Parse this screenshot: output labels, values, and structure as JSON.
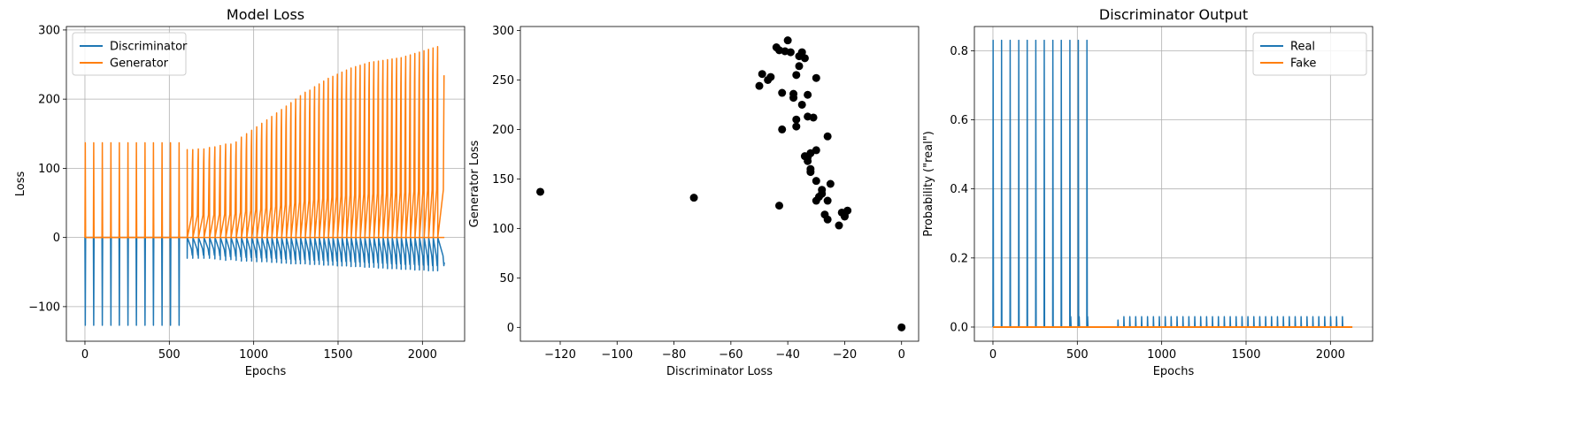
{
  "chart_data": [
    {
      "type": "line",
      "title": "Model Loss",
      "xlabel": "Epochs",
      "ylabel": "Loss",
      "xlim": [
        -110,
        2250
      ],
      "ylim": [
        -150,
        305
      ],
      "xticks": [
        0,
        500,
        1000,
        1500,
        2000
      ],
      "yticks": [
        -100,
        0,
        100,
        200,
        300
      ],
      "grid": true,
      "legend": "top-left",
      "n_epochs": 2130,
      "cycle_starts": [
        0,
        50,
        101,
        152,
        202,
        253,
        303,
        354,
        404,
        455,
        505,
        556,
        606,
        639,
        672,
        705,
        738,
        770,
        802,
        834,
        865,
        896,
        927,
        958,
        988,
        1018,
        1048,
        1078,
        1107,
        1136,
        1165,
        1193,
        1221,
        1249,
        1277,
        1305,
        1333,
        1361,
        1388,
        1415,
        1442,
        1469,
        1496,
        1523,
        1550,
        1577,
        1604,
        1631,
        1658,
        1685,
        1712,
        1739,
        1766,
        1793,
        1820,
        1847,
        1874,
        1901,
        1928,
        1955,
        1982,
        2009,
        2036,
        2063,
        2090
      ],
      "series": [
        {
          "name": "Discriminator",
          "color": "#1f77b4",
          "spike_values": [
            -127,
            -127,
            -127,
            -127,
            -127,
            -127,
            -127,
            -127,
            -127,
            -127,
            -127,
            -127,
            -30,
            -30,
            -30,
            -30,
            -30,
            -31,
            -32,
            -33,
            -32,
            -33,
            -34,
            -34,
            -34,
            -35,
            -35,
            -35,
            -36,
            -36,
            -37,
            -37,
            -38,
            -38,
            -38,
            -38,
            -39,
            -39,
            -39,
            -40,
            -40,
            -40,
            -41,
            -41,
            -41,
            -42,
            -42,
            -42,
            -43,
            -43,
            -43,
            -44,
            -44,
            -45,
            -45,
            -45,
            -46,
            -46,
            -46,
            -47,
            -47,
            -47,
            -48,
            -48,
            -48
          ]
        },
        {
          "name": "Generator",
          "color": "#ff7f0e",
          "spike_values": [
            137,
            137,
            137,
            137,
            137,
            137,
            137,
            137,
            137,
            137,
            137,
            137,
            127,
            127,
            128,
            128,
            130,
            131,
            133,
            135,
            135,
            138,
            145,
            150,
            155,
            160,
            165,
            170,
            175,
            180,
            185,
            190,
            195,
            200,
            205,
            210,
            213,
            218,
            222,
            226,
            230,
            233,
            236,
            239,
            242,
            245,
            247,
            249,
            251,
            253,
            254,
            255,
            256,
            257,
            258,
            259,
            260,
            262,
            264,
            266,
            268,
            270,
            272,
            274,
            276
          ]
        }
      ]
    },
    {
      "type": "scatter",
      "title": "",
      "xlabel": "Discriminator Loss",
      "ylabel": "Generator Loss",
      "xlim": [
        -134,
        6
      ],
      "ylim": [
        -14,
        304
      ],
      "xticks": [
        -120,
        -100,
        -80,
        -60,
        -40,
        -20,
        0
      ],
      "yticks": [
        0,
        50,
        100,
        150,
        200,
        250,
        300
      ],
      "grid": false,
      "color": "#000000",
      "points": [
        [
          -127,
          137
        ],
        [
          -73,
          131
        ],
        [
          -43,
          123
        ],
        [
          0,
          0
        ],
        [
          -50,
          244
        ],
        [
          -49,
          256
        ],
        [
          -47,
          250
        ],
        [
          -46,
          253
        ],
        [
          -44,
          283
        ],
        [
          -43,
          280
        ],
        [
          -42,
          237
        ],
        [
          -42,
          200
        ],
        [
          -41,
          279
        ],
        [
          -40,
          290
        ],
        [
          -39,
          278
        ],
        [
          -38,
          236
        ],
        [
          -38,
          232
        ],
        [
          -37,
          255
        ],
        [
          -37,
          210
        ],
        [
          -37,
          203
        ],
        [
          -36,
          264
        ],
        [
          -36,
          274
        ],
        [
          -35,
          225
        ],
        [
          -35,
          278
        ],
        [
          -34,
          173
        ],
        [
          -34,
          272
        ],
        [
          -33,
          235
        ],
        [
          -33,
          213
        ],
        [
          -33,
          172
        ],
        [
          -33,
          168
        ],
        [
          -32,
          176
        ],
        [
          -32,
          160
        ],
        [
          -32,
          157
        ],
        [
          -31,
          212
        ],
        [
          -30,
          252
        ],
        [
          -30,
          179
        ],
        [
          -30,
          148
        ],
        [
          -30,
          128
        ],
        [
          -29,
          132
        ],
        [
          -28,
          135
        ],
        [
          -28,
          139
        ],
        [
          -27,
          114
        ],
        [
          -26,
          128
        ],
        [
          -26,
          109
        ],
        [
          -26,
          193
        ],
        [
          -25,
          145
        ],
        [
          -22,
          103
        ],
        [
          -21,
          116
        ],
        [
          -20,
          112
        ],
        [
          -20,
          113
        ],
        [
          -19,
          118
        ]
      ]
    },
    {
      "type": "line",
      "title": "Discriminator Output",
      "xlabel": "Epochs",
      "ylabel": "Probability (\"real\")",
      "xlim": [
        -110,
        2250
      ],
      "ylim": [
        -0.041,
        0.87
      ],
      "xticks": [
        0,
        500,
        1000,
        1500,
        2000
      ],
      "yticks": [
        0.0,
        0.2,
        0.4,
        0.6,
        0.8
      ],
      "ytick_labels": [
        "0.0",
        "0.2",
        "0.4",
        "0.6",
        "0.8"
      ],
      "grid": true,
      "legend": "top-right",
      "n_epochs": 2130,
      "cycle_starts": [
        0,
        50,
        101,
        152,
        202,
        253,
        303,
        354,
        404,
        455,
        505,
        556,
        740,
        775,
        810,
        845,
        880,
        915,
        950,
        985,
        1020,
        1055,
        1090,
        1125,
        1160,
        1195,
        1230,
        1265,
        1300,
        1335,
        1370,
        1405,
        1440,
        1475,
        1510,
        1545,
        1580,
        1615,
        1650,
        1685,
        1720,
        1755,
        1790,
        1825,
        1860,
        1895,
        1930,
        1965,
        2000,
        2035,
        2070
      ],
      "series": [
        {
          "name": "Real",
          "color": "#1f77b4",
          "spike_values": [
            0.83,
            0.83,
            0.83,
            0.83,
            0.83,
            0.83,
            0.83,
            0.83,
            0.83,
            0.83,
            0.83,
            0.83,
            0.02,
            0.03,
            0.03,
            0.03,
            0.03,
            0.03,
            0.03,
            0.03,
            0.03,
            0.03,
            0.03,
            0.03,
            0.03,
            0.03,
            0.03,
            0.03,
            0.03,
            0.03,
            0.03,
            0.03,
            0.03,
            0.03,
            0.03,
            0.03,
            0.03,
            0.03,
            0.03,
            0.03,
            0.03,
            0.03,
            0.03,
            0.03,
            0.03,
            0.03,
            0.03,
            0.03,
            0.03,
            0.03,
            0.03
          ]
        },
        {
          "name": "Fake",
          "color": "#ff7f0e",
          "spike_values": [
            0.0
          ]
        }
      ],
      "extra_real_spikes": [
        [
          460,
          0.03
        ],
        [
          510,
          0.03
        ],
        [
          560,
          0.03
        ]
      ]
    }
  ]
}
